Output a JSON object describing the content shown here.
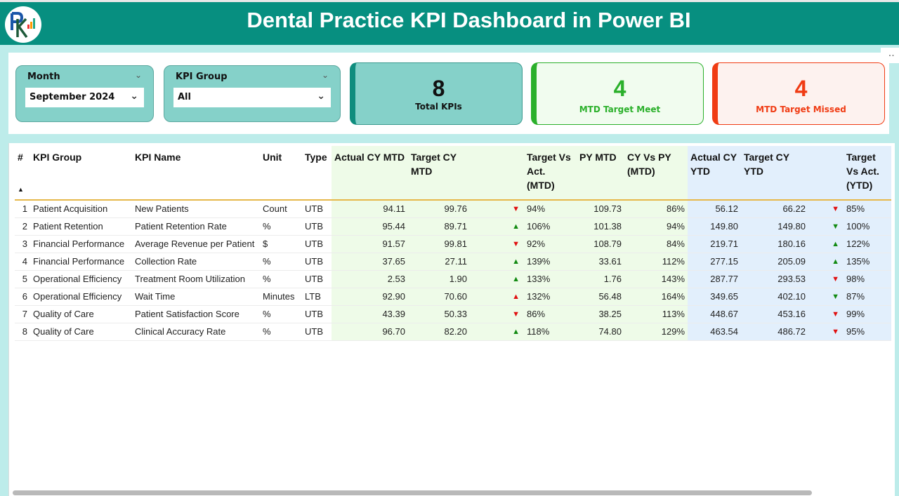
{
  "header": {
    "title": "Dental Practice KPI Dashboard in Power BI",
    "logo_text": "PK"
  },
  "filters": {
    "month": {
      "label": "Month",
      "value": "September 2024"
    },
    "kpi_group": {
      "label": "KPI Group",
      "value": "All"
    }
  },
  "cards": [
    {
      "value": "8",
      "caption": "Total KPIs",
      "color": "#111111"
    },
    {
      "value": "4",
      "caption": "MTD Target Meet",
      "color": "#2bb02b"
    },
    {
      "value": "4",
      "caption": "MTD Target Missed",
      "color": "#f03c14"
    }
  ],
  "more_options": "...",
  "table": {
    "columns": [
      "#",
      "KPI Group",
      "KPI Name",
      "Unit",
      "Type",
      "Actual CY MTD",
      "Target CY MTD",
      "",
      "Target Vs Act. (MTD)",
      "PY MTD",
      "CY Vs PY (MTD)",
      "Actual CY YTD",
      "Target CY YTD",
      "",
      "Target Vs Act. (YTD)"
    ],
    "rows": [
      {
        "n": "1",
        "group": "Patient Acquisition",
        "name": "New Patients",
        "unit": "Count",
        "type": "UTB",
        "act_mtd": "94.11",
        "tgt_mtd": "99.76",
        "mtd_arrow": "down",
        "mtd_color": "#e01010",
        "tva_mtd": "94%",
        "py_mtd": "109.73",
        "cy_vs_py": "86%",
        "act_ytd": "56.12",
        "tgt_ytd": "66.22",
        "ytd_arrow": "down",
        "ytd_color": "#e01010",
        "tva_ytd": "85%"
      },
      {
        "n": "2",
        "group": "Patient Retention",
        "name": "Patient Retention Rate",
        "unit": "%",
        "type": "UTB",
        "act_mtd": "95.44",
        "tgt_mtd": "89.71",
        "mtd_arrow": "up",
        "mtd_color": "#128a12",
        "tva_mtd": "106%",
        "py_mtd": "101.38",
        "cy_vs_py": "94%",
        "act_ytd": "149.80",
        "tgt_ytd": "149.80",
        "ytd_arrow": "down",
        "ytd_color": "#128a12",
        "tva_ytd": "100%"
      },
      {
        "n": "3",
        "group": "Financial Performance",
        "name": "Average Revenue per Patient",
        "unit": "$",
        "type": "UTB",
        "act_mtd": "91.57",
        "tgt_mtd": "99.81",
        "mtd_arrow": "down",
        "mtd_color": "#e01010",
        "tva_mtd": "92%",
        "py_mtd": "108.79",
        "cy_vs_py": "84%",
        "act_ytd": "219.71",
        "tgt_ytd": "180.16",
        "ytd_arrow": "up",
        "ytd_color": "#128a12",
        "tva_ytd": "122%"
      },
      {
        "n": "4",
        "group": "Financial Performance",
        "name": "Collection Rate",
        "unit": "%",
        "type": "UTB",
        "act_mtd": "37.65",
        "tgt_mtd": "27.11",
        "mtd_arrow": "up",
        "mtd_color": "#128a12",
        "tva_mtd": "139%",
        "py_mtd": "33.61",
        "cy_vs_py": "112%",
        "act_ytd": "277.15",
        "tgt_ytd": "205.09",
        "ytd_arrow": "up",
        "ytd_color": "#128a12",
        "tva_ytd": "135%"
      },
      {
        "n": "5",
        "group": "Operational Efficiency",
        "name": "Treatment Room Utilization",
        "unit": "%",
        "type": "UTB",
        "act_mtd": "2.53",
        "tgt_mtd": "1.90",
        "mtd_arrow": "up",
        "mtd_color": "#128a12",
        "tva_mtd": "133%",
        "py_mtd": "1.76",
        "cy_vs_py": "143%",
        "act_ytd": "287.77",
        "tgt_ytd": "293.53",
        "ytd_arrow": "down",
        "ytd_color": "#e01010",
        "tva_ytd": "98%"
      },
      {
        "n": "6",
        "group": "Operational Efficiency",
        "name": "Wait Time",
        "unit": "Minutes",
        "type": "LTB",
        "act_mtd": "92.90",
        "tgt_mtd": "70.60",
        "mtd_arrow": "up",
        "mtd_color": "#e01010",
        "tva_mtd": "132%",
        "py_mtd": "56.48",
        "cy_vs_py": "164%",
        "act_ytd": "349.65",
        "tgt_ytd": "402.10",
        "ytd_arrow": "down",
        "ytd_color": "#128a12",
        "tva_ytd": "87%"
      },
      {
        "n": "7",
        "group": "Quality of Care",
        "name": "Patient Satisfaction Score",
        "unit": "%",
        "type": "UTB",
        "act_mtd": "43.39",
        "tgt_mtd": "50.33",
        "mtd_arrow": "down",
        "mtd_color": "#e01010",
        "tva_mtd": "86%",
        "py_mtd": "38.25",
        "cy_vs_py": "113%",
        "act_ytd": "448.67",
        "tgt_ytd": "453.16",
        "ytd_arrow": "down",
        "ytd_color": "#e01010",
        "tva_ytd": "99%"
      },
      {
        "n": "8",
        "group": "Quality of Care",
        "name": "Clinical Accuracy Rate",
        "unit": "%",
        "type": "UTB",
        "act_mtd": "96.70",
        "tgt_mtd": "82.20",
        "mtd_arrow": "up",
        "mtd_color": "#128a12",
        "tva_mtd": "118%",
        "py_mtd": "74.80",
        "cy_vs_py": "129%",
        "act_ytd": "463.54",
        "tgt_ytd": "486.72",
        "ytd_arrow": "down",
        "ytd_color": "#e01010",
        "tva_ytd": "95%"
      }
    ]
  }
}
